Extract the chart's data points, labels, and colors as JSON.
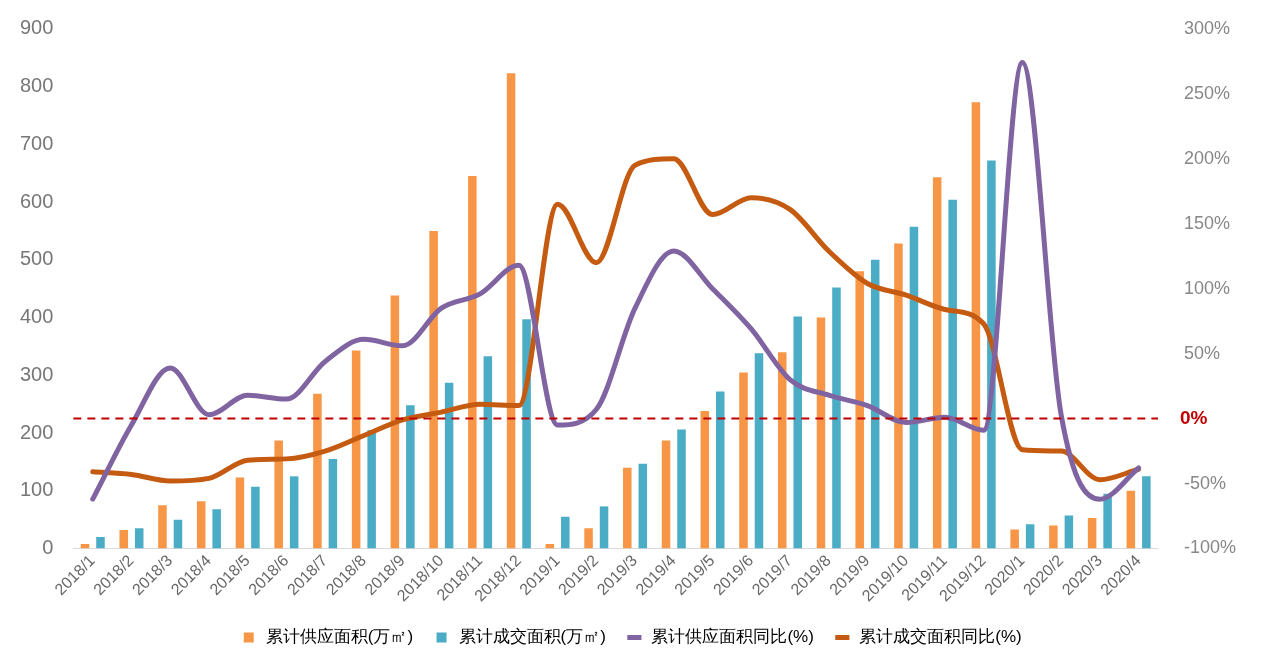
{
  "chart_data": {
    "type": "bar",
    "categories": [
      "2018/1",
      "2018/2",
      "2018/3",
      "2018/4",
      "2018/5",
      "2018/6",
      "2018/7",
      "2018/8",
      "2018/9",
      "2018/10",
      "2018/11",
      "2018/12",
      "2019/1",
      "2019/2",
      "2019/3",
      "2019/4",
      "2019/5",
      "2019/6",
      "2019/7",
      "2019/8",
      "2019/9",
      "2019/10",
      "2019/11",
      "2019/12",
      "2020/1",
      "2020/2",
      "2020/3",
      "2020/4"
    ],
    "series": [
      {
        "name": "累计供应面积(万㎡)",
        "color": "#f79646",
        "values": [
          8,
          32,
          75,
          82,
          123,
          187,
          268,
          343,
          438,
          550,
          645,
          823,
          8,
          35,
          140,
          187,
          238,
          305,
          340,
          400,
          480,
          528,
          643,
          773,
          33,
          40,
          53,
          100
        ]
      },
      {
        "name": "累计成交面积(万㎡)",
        "color": "#4bacc6",
        "values": [
          20,
          35,
          50,
          68,
          107,
          125,
          155,
          205,
          248,
          287,
          333,
          397,
          55,
          73,
          147,
          206,
          272,
          338,
          402,
          452,
          500,
          557,
          604,
          672,
          42,
          57,
          95,
          125
        ]
      },
      {
        "name": "累计供应面积同比(%)",
        "type": "line",
        "axis": "y2",
        "color": "#8064a2",
        "values": [
          -62,
          -5,
          39,
          3,
          18,
          15,
          44,
          61,
          56,
          85,
          96,
          118,
          -5,
          7,
          85,
          129,
          100,
          69,
          30,
          18,
          10,
          -3,
          1,
          -9,
          274,
          3,
          -62,
          -38
        ]
      },
      {
        "name": "累计成交面积同比(%)",
        "type": "line",
        "axis": "y2",
        "color": "#c55a11",
        "values": [
          -41,
          -43,
          -48,
          -46,
          -32,
          -31,
          -25,
          -13,
          -1,
          5,
          11,
          10,
          165,
          120,
          195,
          200,
          157,
          170,
          161,
          129,
          104,
          95,
          84,
          73,
          -24,
          -25,
          -47,
          -39
        ]
      }
    ],
    "ylim": [
      0,
      900
    ],
    "yticks": [
      0,
      100,
      200,
      300,
      400,
      500,
      600,
      700,
      800,
      900
    ],
    "y2lim": [
      -100,
      300
    ],
    "y2ticks": [
      {
        "value": -100,
        "label": "-100%"
      },
      {
        "value": -50,
        "label": "-50%"
      },
      {
        "value": 0,
        "label": null
      },
      {
        "value": 50,
        "label": "50%"
      },
      {
        "value": 100,
        "label": "100%"
      },
      {
        "value": 150,
        "label": "150%"
      },
      {
        "value": 200,
        "label": "200%"
      },
      {
        "value": 250,
        "label": "250%"
      },
      {
        "value": 300,
        "label": "300%"
      }
    ],
    "ref_lines": [
      {
        "axis": "y2",
        "value": 0,
        "label": "0%",
        "color": "#c00000",
        "line_style": "dashed"
      }
    ],
    "grid": false,
    "legend": "bottom",
    "marker": "none",
    "line_style": "solid"
  }
}
